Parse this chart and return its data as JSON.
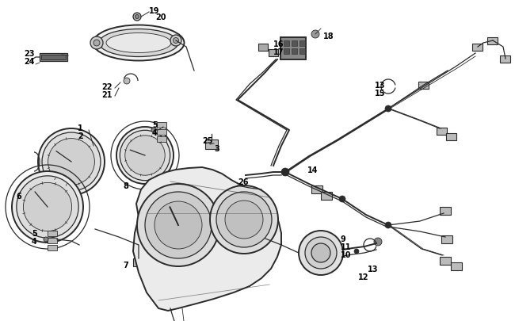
{
  "bg_color": "#ffffff",
  "line_color": "#2a2a2a",
  "label_color": "#000000",
  "figsize": [
    6.5,
    4.06
  ],
  "dpi": 100,
  "font_size": 7.0,
  "font_weight": "bold"
}
